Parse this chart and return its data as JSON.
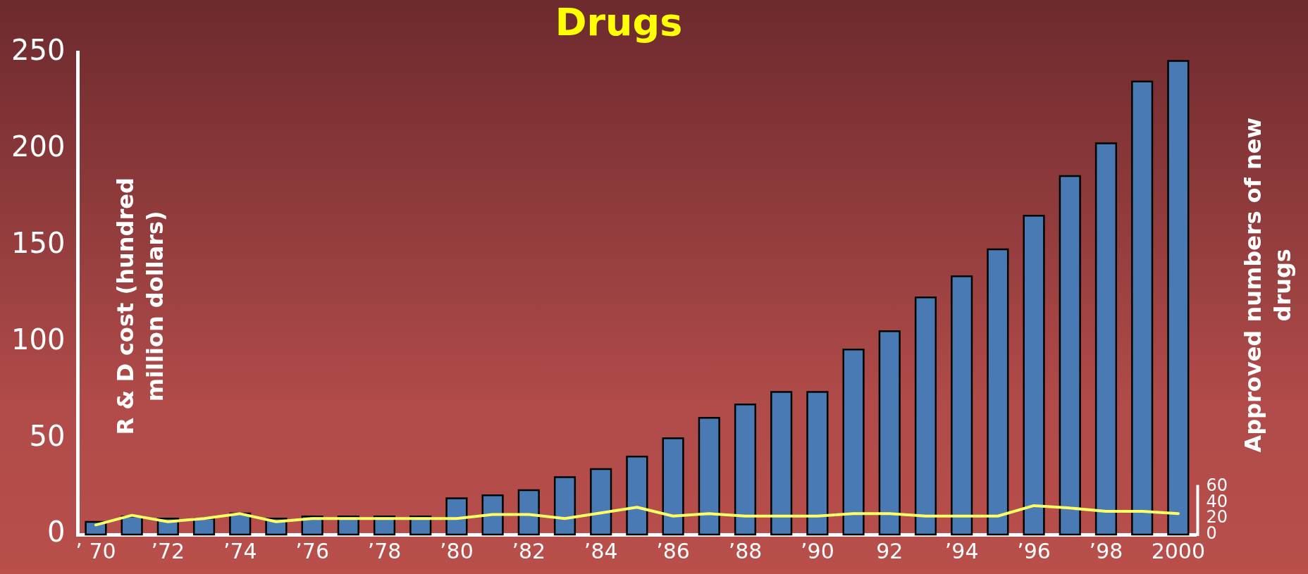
{
  "chart_data": {
    "type": "bar",
    "title": "Drugs",
    "ylabel": "R & D cost (hundred million dollars)",
    "y2label": "Approved numbers of new drugs",
    "categories": [
      "’ 70",
      null,
      "’72",
      null,
      "’74",
      null,
      "’76",
      null,
      "’78",
      null,
      "’80",
      null,
      "’82",
      null,
      "’84",
      null,
      "’86",
      null,
      "’88",
      null,
      "’90",
      null,
      "92",
      null,
      "’94",
      null,
      "’96",
      null,
      "’98",
      null,
      "2000"
    ],
    "series": [
      {
        "color": "#4a7ab4",
        "values": [
          6.6,
          9.4,
          8.3,
          8.3,
          11,
          8.3,
          9.4,
          9.4,
          9.4,
          9.4,
          18.8,
          20.4,
          23,
          29.8,
          34,
          40.5,
          50,
          60.6,
          67.5,
          74,
          74,
          96,
          105.5,
          123,
          134,
          148,
          165.4,
          186,
          203,
          235,
          245.7
        ]
      },
      {
        "type": "line",
        "axis": "y2",
        "color": "#ffff66",
        "values": [
          12,
          24,
          16,
          20,
          26,
          16,
          20,
          20,
          20,
          20,
          20,
          25,
          25,
          20,
          27,
          34,
          23,
          26,
          23,
          23,
          23,
          26,
          26,
          23,
          23,
          23,
          36,
          33,
          29,
          29,
          26
        ]
      }
    ],
    "ylim": [
      0,
      250
    ],
    "yticks": [
      0,
      50,
      100,
      150,
      200,
      250
    ],
    "y2lim": [
      0,
      600
    ],
    "y2ticks": [
      0,
      20,
      40,
      60
    ],
    "grid": false,
    "legend": false,
    "marker": "none"
  }
}
